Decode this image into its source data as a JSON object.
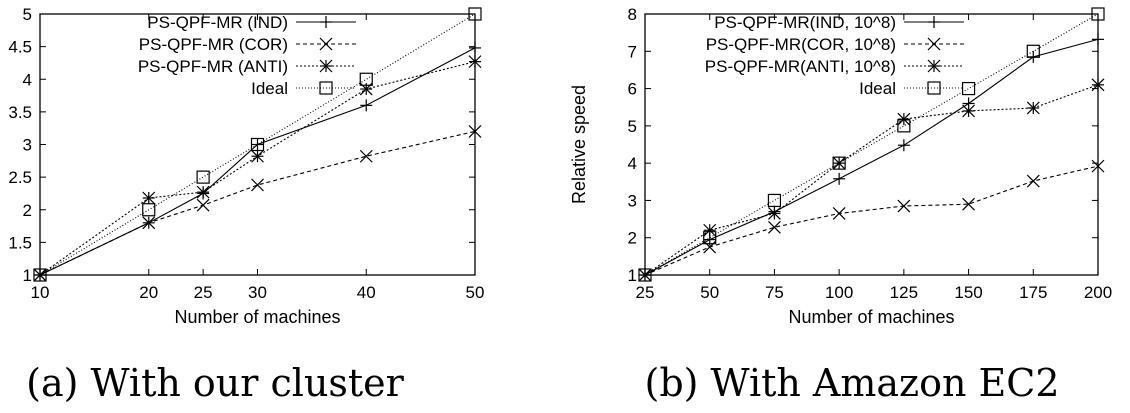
{
  "chart_data": [
    {
      "type": "line",
      "title": "",
      "caption": "(a) With our cluster",
      "xlabel": "Number of machines",
      "ylabel": "",
      "x": [
        10,
        20,
        25,
        30,
        40,
        50
      ],
      "x_ticks": [
        10,
        20,
        25,
        30,
        40,
        50
      ],
      "xlim": [
        10,
        50
      ],
      "y_ticks": [
        1,
        1.5,
        2,
        2.5,
        3,
        3.5,
        4,
        4.5,
        5
      ],
      "ylim": [
        1,
        5
      ],
      "grid": false,
      "legend_position": "top-left",
      "series": [
        {
          "name": "PS-QPF-MR (IND)",
          "marker": "plus",
          "dash": "solid",
          "values": [
            1,
            1.8,
            2.25,
            3.0,
            3.6,
            4.48
          ]
        },
        {
          "name": "PS-QPF-MR (COR)",
          "marker": "x",
          "dash": "dashed",
          "values": [
            1,
            1.8,
            2.07,
            2.38,
            2.82,
            3.2
          ]
        },
        {
          "name": "PS-QPF-MR (ANTI)",
          "marker": "star",
          "dash": "dotted",
          "values": [
            1,
            2.18,
            2.27,
            2.82,
            3.85,
            4.27
          ]
        },
        {
          "name": "Ideal",
          "marker": "square",
          "dash": "dotted-fine",
          "values": [
            1,
            2,
            2.5,
            3,
            4,
            5
          ]
        }
      ]
    },
    {
      "type": "line",
      "title": "",
      "caption": "(b) With Amazon EC2",
      "xlabel": "Number of machines",
      "ylabel": "Relative speed",
      "x": [
        25,
        50,
        75,
        100,
        125,
        150,
        175,
        200
      ],
      "x_ticks": [
        25,
        50,
        75,
        100,
        125,
        150,
        175,
        200
      ],
      "xlim": [
        25,
        200
      ],
      "y_ticks": [
        1,
        2,
        3,
        4,
        5,
        6,
        7,
        8
      ],
      "ylim": [
        1,
        8
      ],
      "grid": false,
      "legend_position": "top-left",
      "series": [
        {
          "name": "PS-QPF-MR(IND, 10^8)",
          "marker": "plus",
          "dash": "solid",
          "values": [
            1,
            1.95,
            2.7,
            3.58,
            4.48,
            5.6,
            6.85,
            7.32
          ]
        },
        {
          "name": "PS-QPF-MR(COR, 10^8)",
          "marker": "x",
          "dash": "dashed",
          "values": [
            1,
            1.75,
            2.28,
            2.65,
            2.85,
            2.9,
            3.52,
            3.92
          ]
        },
        {
          "name": "PS-QPF-MR(ANTI, 10^8)",
          "marker": "star",
          "dash": "dotted",
          "values": [
            1,
            2.2,
            2.65,
            4.0,
            5.18,
            5.4,
            5.48,
            6.1
          ]
        },
        {
          "name": "Ideal",
          "marker": "square",
          "dash": "dotted-fine",
          "values": [
            1,
            2,
            3,
            4,
            5,
            6,
            7,
            8
          ]
        }
      ]
    }
  ]
}
